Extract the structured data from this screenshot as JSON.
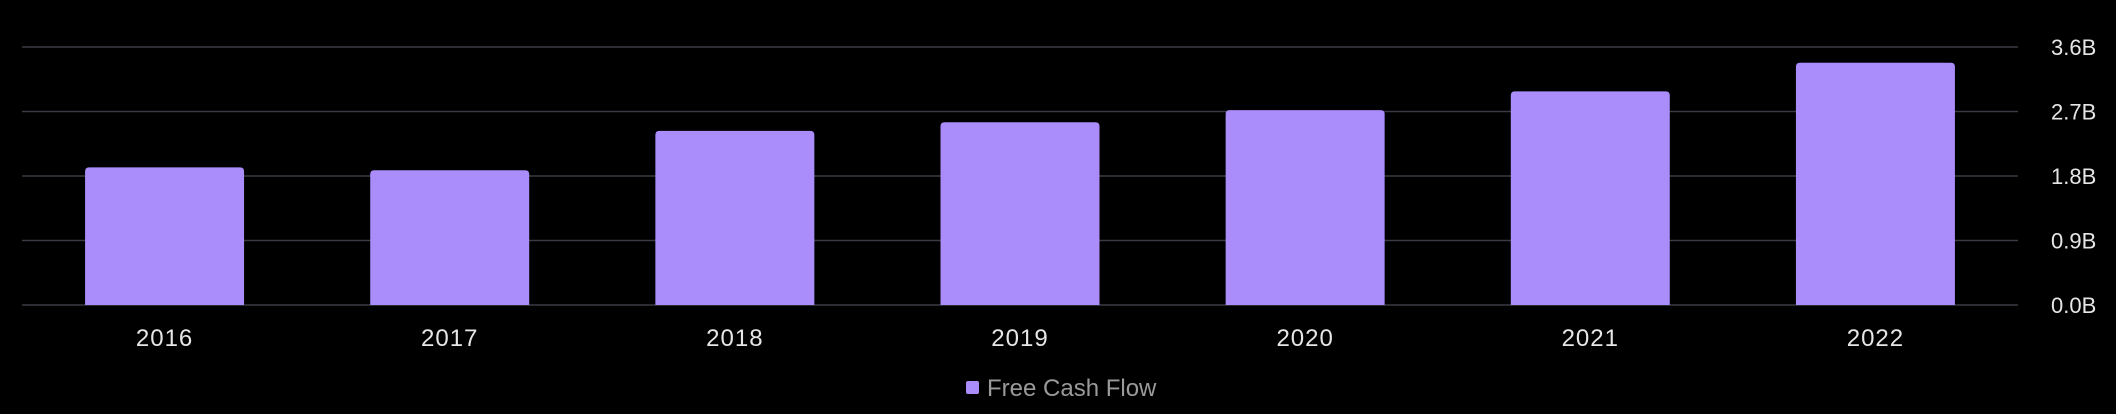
{
  "chart_data": {
    "type": "bar",
    "title": "",
    "xlabel": "",
    "ylabel": "",
    "categories": [
      "2016",
      "2017",
      "2018",
      "2019",
      "2020",
      "2021",
      "2022"
    ],
    "series": [
      {
        "name": "Free Cash Flow",
        "values": [
          1.92,
          1.88,
          2.43,
          2.55,
          2.72,
          2.98,
          3.38
        ]
      }
    ],
    "ylim": [
      0,
      3.6
    ],
    "yticks": [
      {
        "value": 0.0,
        "label": "0.0B"
      },
      {
        "value": 0.9,
        "label": "0.9B"
      },
      {
        "value": 1.8,
        "label": "1.8B"
      },
      {
        "value": 2.7,
        "label": "2.7B"
      },
      {
        "value": 3.6,
        "label": "3.6B"
      }
    ],
    "grid": true,
    "y_axis_position": "right",
    "legend_position": "bottom-center"
  },
  "colors": {
    "background": "#000000",
    "bar": "#ab8cfb",
    "grid": "#3a3a44",
    "axis_text": "#e6e6e6",
    "legend_text": "#9a9a9a"
  }
}
